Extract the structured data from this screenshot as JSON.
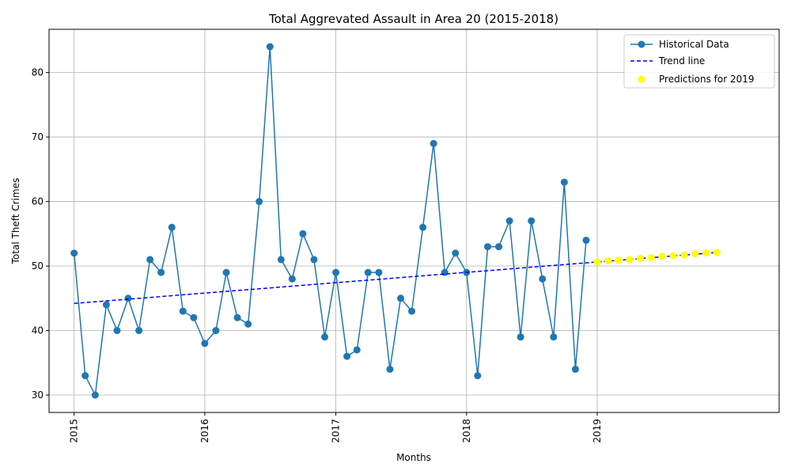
{
  "chart_data": {
    "type": "line",
    "title": "Total Aggrevated Assault in Area 20 (2015-2018)",
    "xlabel": "Months",
    "ylabel": "Total Theft Crimes",
    "x_ticks": [
      "2015",
      "2016",
      "2017",
      "2018",
      "2019"
    ],
    "y_ticks": [
      30,
      40,
      50,
      60,
      70,
      80
    ],
    "xlim": [
      "2014-10-23",
      "2020-05-23"
    ],
    "ylim": [
      27.3,
      86.7
    ],
    "grid": true,
    "legend_position": "top-right",
    "legend": [
      "Historical Data",
      "Trend line",
      "Predictions for 2019"
    ],
    "colors": {
      "historical": "#1f77b4",
      "trend": "#0000ff",
      "prediction": "#ffff00"
    },
    "series": [
      {
        "name": "Historical Data",
        "style": "line-marker",
        "x": [
          "2015-01",
          "2015-02",
          "2015-03",
          "2015-04",
          "2015-05",
          "2015-06",
          "2015-07",
          "2015-08",
          "2015-09",
          "2015-10",
          "2015-11",
          "2015-12",
          "2016-01",
          "2016-02",
          "2016-03",
          "2016-04",
          "2016-05",
          "2016-06",
          "2016-07",
          "2016-08",
          "2016-09",
          "2016-10",
          "2016-11",
          "2016-12",
          "2017-01",
          "2017-02",
          "2017-03",
          "2017-04",
          "2017-05",
          "2017-06",
          "2017-07",
          "2017-08",
          "2017-09",
          "2017-10",
          "2017-11",
          "2017-12",
          "2018-01",
          "2018-02",
          "2018-03",
          "2018-04",
          "2018-05",
          "2018-06",
          "2018-07",
          "2018-08",
          "2018-09",
          "2018-10",
          "2018-11",
          "2018-12"
        ],
        "values": [
          52,
          33,
          30,
          44,
          40,
          45,
          40,
          51,
          49,
          56,
          43,
          42,
          38,
          40,
          49,
          42,
          41,
          60,
          84,
          51,
          48,
          55,
          51,
          39,
          49,
          36,
          37,
          49,
          49,
          34,
          45,
          43,
          56,
          69,
          49,
          52,
          49,
          33,
          53,
          53,
          57,
          39,
          57,
          48,
          39,
          63,
          34,
          54
        ]
      },
      {
        "name": "Trend line",
        "style": "dashed",
        "x": [
          "2015-01",
          "2019-12"
        ],
        "values": [
          44.2,
          52.1
        ]
      },
      {
        "name": "Predictions for 2019",
        "style": "scatter",
        "x": [
          "2019-01",
          "2019-02",
          "2019-03",
          "2019-04",
          "2019-05",
          "2019-06",
          "2019-07",
          "2019-08",
          "2019-09",
          "2019-10",
          "2019-11",
          "2019-12"
        ],
        "values": [
          50.6,
          50.8,
          50.9,
          51.0,
          51.2,
          51.3,
          51.5,
          51.6,
          51.7,
          51.9,
          52.0,
          52.1
        ]
      }
    ]
  }
}
